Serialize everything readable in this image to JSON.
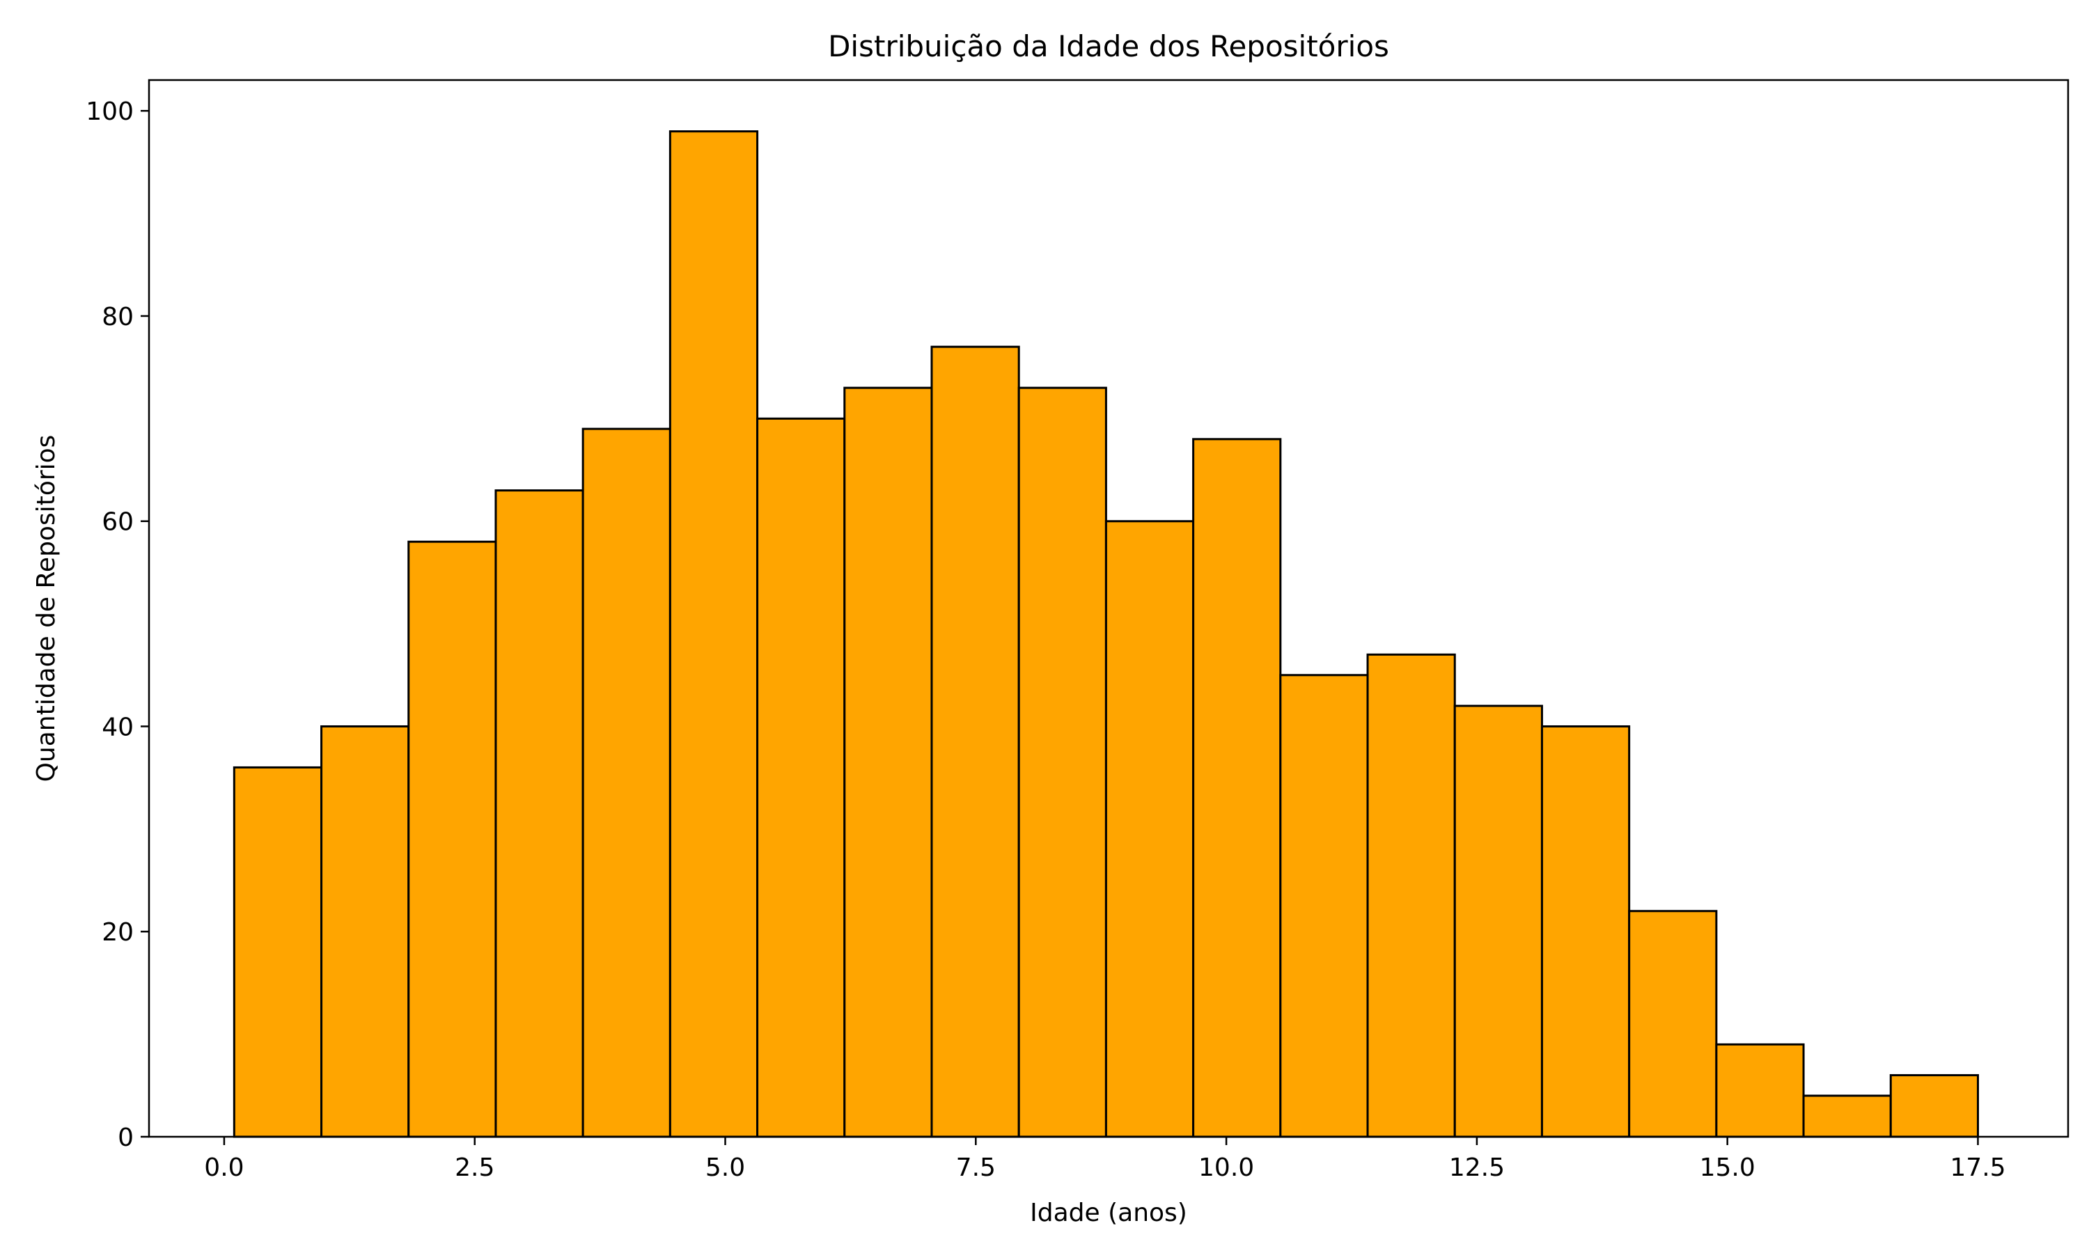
{
  "chart_data": {
    "type": "bar",
    "subtype": "histogram",
    "title": "Distribuição da Idade dos Repositórios",
    "xlabel": "Idade (anos)",
    "ylabel": "Quantidade de Repositórios",
    "xlim": [
      -0.75,
      18.4
    ],
    "ylim": [
      0,
      103
    ],
    "bin_edges": [
      0.1,
      0.97,
      1.84,
      2.71,
      3.58,
      4.45,
      5.32,
      6.19,
      7.06,
      7.93,
      8.8,
      9.67,
      10.54,
      11.41,
      12.28,
      13.15,
      14.02,
      14.89,
      15.76,
      16.63,
      17.5
    ],
    "values": [
      36,
      40,
      58,
      63,
      69,
      98,
      70,
      73,
      77,
      73,
      60,
      68,
      45,
      47,
      42,
      40,
      22,
      9,
      4,
      6
    ],
    "x_ticks": [
      {
        "value": 0.0,
        "label": "0.0"
      },
      {
        "value": 2.5,
        "label": "2.5"
      },
      {
        "value": 5.0,
        "label": "5.0"
      },
      {
        "value": 7.5,
        "label": "7.5"
      },
      {
        "value": 10.0,
        "label": "10.0"
      },
      {
        "value": 12.5,
        "label": "12.5"
      },
      {
        "value": 15.0,
        "label": "15.0"
      },
      {
        "value": 17.5,
        "label": "17.5"
      }
    ],
    "y_ticks": [
      {
        "value": 0,
        "label": "0"
      },
      {
        "value": 20,
        "label": "20"
      },
      {
        "value": 40,
        "label": "40"
      },
      {
        "value": 60,
        "label": "60"
      },
      {
        "value": 80,
        "label": "80"
      },
      {
        "value": 100,
        "label": "100"
      }
    ],
    "bar_color": "#ffa500",
    "edge_color": "#000000",
    "grid": false,
    "legend": "none"
  }
}
